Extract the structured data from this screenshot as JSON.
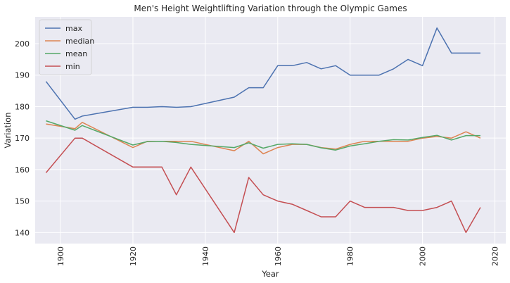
{
  "chart_data": {
    "type": "line",
    "title": "Men's Height Weightlifting Variation through the Olympic Games",
    "xlabel": "Year",
    "ylabel": "Variation",
    "xlim": [
      1893,
      2023
    ],
    "ylim": [
      136.5,
      208.5
    ],
    "xticks": [
      1900,
      1920,
      1940,
      1960,
      1980,
      2000,
      2020
    ],
    "yticks": [
      140,
      150,
      160,
      170,
      180,
      190,
      200
    ],
    "grid": true,
    "legend_position": "top-left",
    "x": [
      1896,
      1904,
      1906,
      1920,
      1924,
      1928,
      1932,
      1936,
      1948,
      1952,
      1956,
      1960,
      1964,
      1968,
      1972,
      1976,
      1980,
      1984,
      1988,
      1992,
      1996,
      2000,
      2004,
      2008,
      2012,
      2016
    ],
    "series": [
      {
        "name": "max",
        "color": "#4c72b0",
        "values": [
          188,
          176,
          177,
          179.8,
          179.8,
          180,
          179.8,
          180,
          183,
          186,
          186,
          193,
          193,
          194,
          192,
          193,
          190,
          190,
          190,
          192,
          195,
          193,
          205,
          197,
          197,
          197
        ]
      },
      {
        "name": "median",
        "color": "#dd8452",
        "values": [
          174.5,
          173,
          175,
          167,
          169,
          169,
          169,
          169,
          166,
          169,
          165,
          167,
          168,
          168,
          167,
          166.5,
          168,
          169,
          169,
          169,
          169,
          170,
          170.5,
          170,
          172,
          170
        ]
      },
      {
        "name": "mean",
        "color": "#55a868",
        "values": [
          175.5,
          172.5,
          174,
          167.8,
          168.9,
          169,
          168.6,
          168,
          167,
          168.5,
          166.8,
          168,
          168.2,
          168,
          166.9,
          166.2,
          167.5,
          168.2,
          169,
          169.5,
          169.4,
          170.2,
          170.9,
          169.4,
          170.8,
          170.8
        ]
      },
      {
        "name": "min",
        "color": "#c44e52",
        "values": [
          159,
          170,
          170,
          160.8,
          160.8,
          160.8,
          152,
          160.8,
          140,
          157.5,
          152,
          150,
          149,
          147,
          145,
          145,
          150,
          148,
          148,
          148,
          147,
          147,
          148,
          150,
          140,
          148
        ]
      }
    ]
  }
}
